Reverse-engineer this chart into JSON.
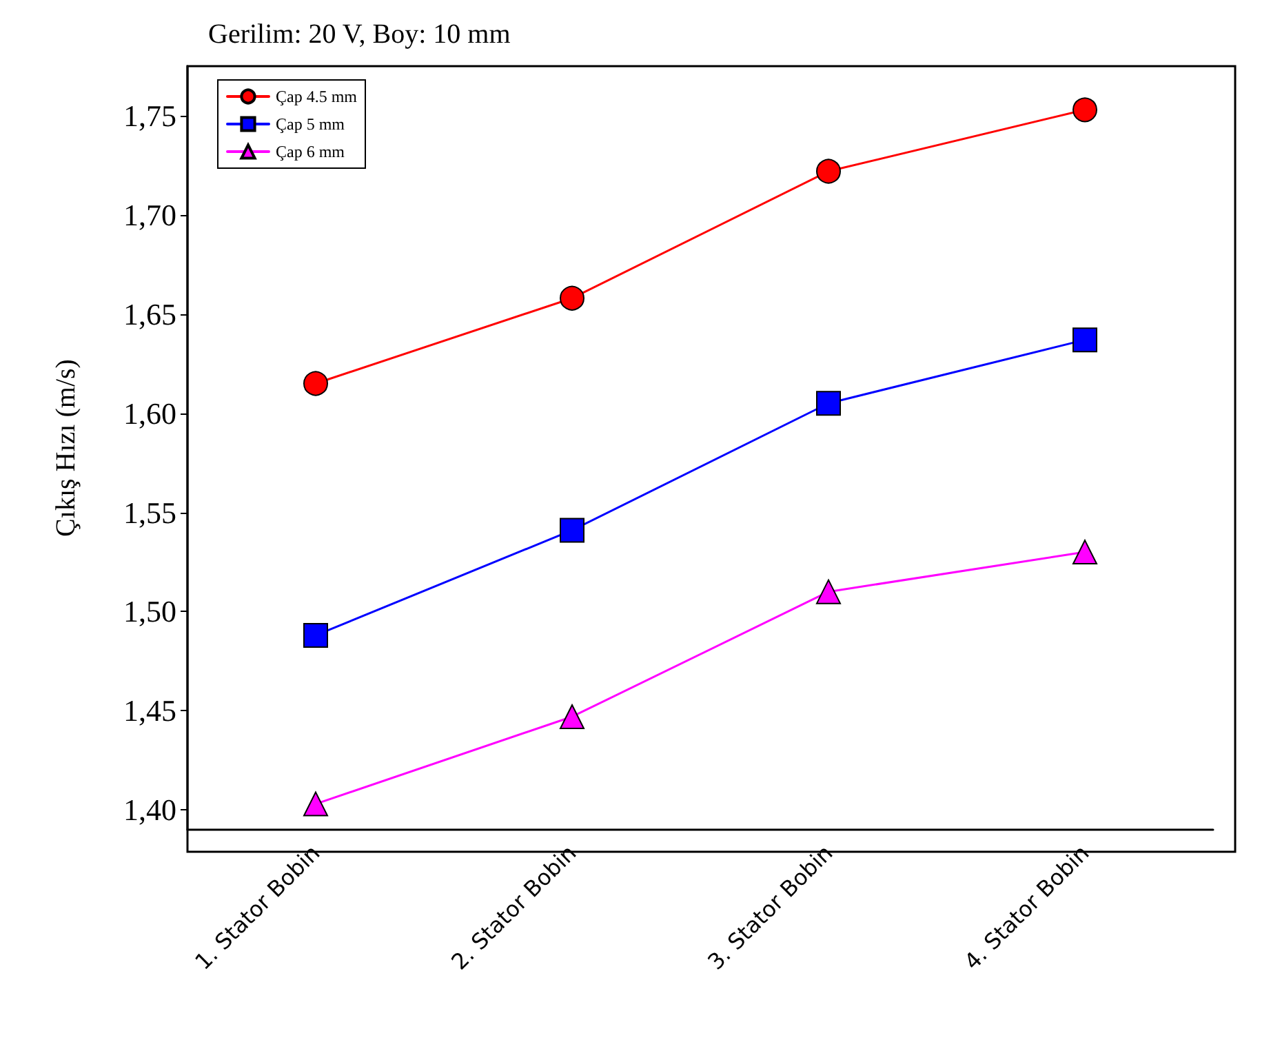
{
  "chart_data": {
    "type": "line",
    "title": "Gerilim: 20 V, Boy: 10 mm",
    "ylabel": "Çıkış Hızı (m/s)",
    "categories": [
      "1. Stator Bobin",
      "2. Stator Bobin",
      "3. Stator Bobin",
      "4. Stator Bobin"
    ],
    "series": [
      {
        "name": "Çap 4.5 mm",
        "color": "#ff0000",
        "marker": "circle",
        "values": [
          1.615,
          1.658,
          1.722,
          1.753
        ]
      },
      {
        "name": "Çap 5 mm",
        "color": "#0000ff",
        "marker": "square",
        "values": [
          1.488,
          1.541,
          1.605,
          1.637
        ]
      },
      {
        "name": "Çap 6 mm",
        "color": "#ff00ff",
        "marker": "triangle",
        "values": [
          1.403,
          1.447,
          1.51,
          1.53
        ]
      }
    ],
    "ylim": [
      1.39,
      1.775
    ],
    "yticks": [
      {
        "value": 1.4,
        "label": "1,40"
      },
      {
        "value": 1.45,
        "label": "1,45"
      },
      {
        "value": 1.5,
        "label": "1,50"
      },
      {
        "value": 1.55,
        "label": "1,55"
      },
      {
        "value": 1.6,
        "label": "1,60"
      },
      {
        "value": 1.65,
        "label": "1,65"
      },
      {
        "value": 1.7,
        "label": "1,70"
      },
      {
        "value": 1.75,
        "label": "1,75"
      }
    ],
    "grid": false,
    "legend": "top left",
    "line_style": "solid"
  }
}
